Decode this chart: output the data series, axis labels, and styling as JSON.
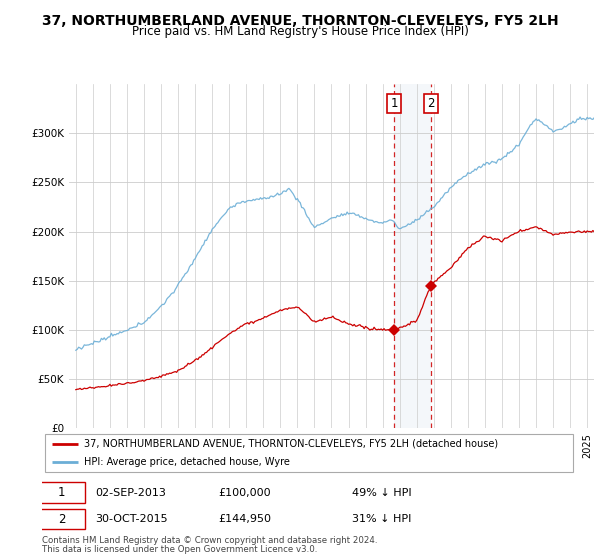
{
  "title": "37, NORTHUMBERLAND AVENUE, THORNTON-CLEVELEYS, FY5 2LH",
  "subtitle": "Price paid vs. HM Land Registry's House Price Index (HPI)",
  "sale1_date": "02-SEP-2013",
  "sale1_price": 100000,
  "sale1_label": "£100,000",
  "sale1_pct": "49% ↓ HPI",
  "sale1_year": 2013.67,
  "sale2_date": "30-OCT-2015",
  "sale2_price": 144950,
  "sale2_label": "£144,950",
  "sale2_pct": "31% ↓ HPI",
  "sale2_year": 2015.83,
  "legend_line1": "37, NORTHUMBERLAND AVENUE, THORNTON-CLEVELEYS, FY5 2LH (detached house)",
  "legend_line2": "HPI: Average price, detached house, Wyre",
  "footnote1": "Contains HM Land Registry data © Crown copyright and database right 2024.",
  "footnote2": "This data is licensed under the Open Government Licence v3.0.",
  "hpi_color": "#6baed6",
  "price_color": "#cc0000",
  "highlight_color": "#dce6f1",
  "grid_color": "#cccccc",
  "background_color": "#ffffff"
}
